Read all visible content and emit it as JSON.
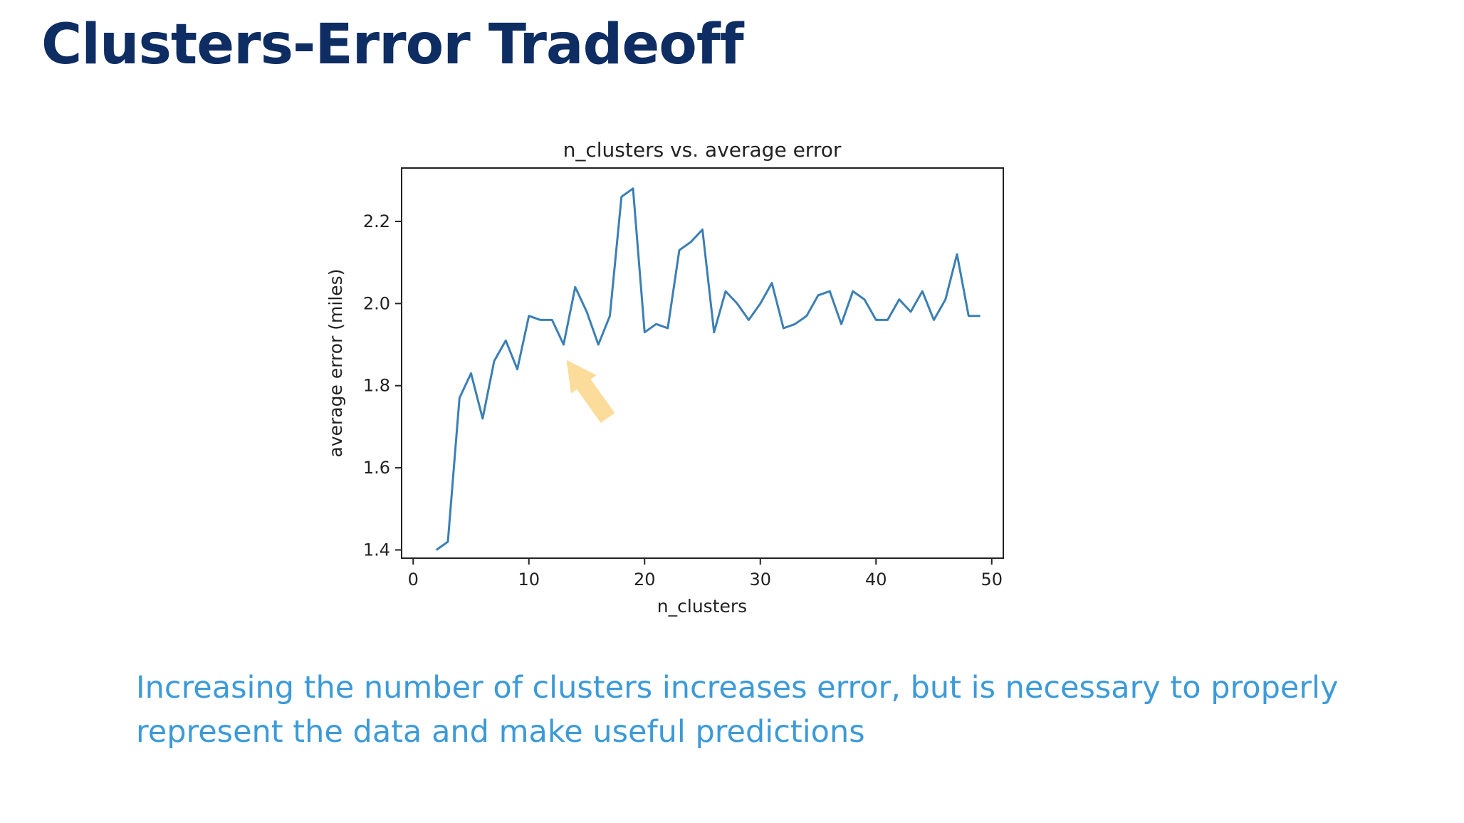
{
  "slide": {
    "title": "Clusters-Error Tradeoff",
    "caption": "Increasing the number of clusters increases error, but is necessary to properly represent the data and make useful predictions"
  },
  "colors": {
    "title": "#0d2d63",
    "caption": "#3c9ad8",
    "line": "#3b7fb4",
    "arrow": "#fbdc9a",
    "axis": "#222222"
  },
  "chart_data": {
    "type": "line",
    "title": "n_clusters vs. average error",
    "xlabel": "n_clusters",
    "ylabel": "average error (miles)",
    "xlim": [
      -1,
      51
    ],
    "ylim": [
      1.38,
      2.33
    ],
    "xticks": [
      0,
      10,
      20,
      30,
      40,
      50
    ],
    "yticks": [
      1.4,
      1.6,
      1.8,
      2.0,
      2.2
    ],
    "xtick_labels": [
      "0",
      "10",
      "20",
      "30",
      "40",
      "50"
    ],
    "ytick_labels": [
      "1.4",
      "1.6",
      "1.8",
      "2.0",
      "2.2"
    ],
    "grid": false,
    "series": [
      {
        "x": [
          2,
          3,
          4,
          5,
          6,
          7,
          8,
          9,
          10,
          11,
          12,
          13,
          14,
          15,
          16,
          17,
          18,
          19,
          20,
          21,
          22,
          23,
          24,
          25,
          26,
          27,
          28,
          29,
          30,
          31,
          32,
          33,
          34,
          35,
          36,
          37,
          38,
          39,
          40,
          41,
          42,
          43,
          44,
          45,
          46,
          47,
          48,
          49
        ],
        "values": [
          1.4,
          1.42,
          1.77,
          1.83,
          1.72,
          1.86,
          1.91,
          1.84,
          1.97,
          1.96,
          1.96,
          1.9,
          2.04,
          1.98,
          1.9,
          1.97,
          2.26,
          2.28,
          1.93,
          1.95,
          1.94,
          2.13,
          2.15,
          2.18,
          1.93,
          2.03,
          2.0,
          1.96,
          2.0,
          2.05,
          1.94,
          1.95,
          1.97,
          2.02,
          2.03,
          1.95,
          2.03,
          2.01,
          1.96,
          1.96,
          2.01,
          1.98,
          2.03,
          1.96,
          2.01,
          2.12,
          1.97,
          1.97
        ]
      }
    ],
    "annotation": {
      "type": "arrow",
      "points_to": {
        "x": 13,
        "y": 1.88
      }
    }
  }
}
